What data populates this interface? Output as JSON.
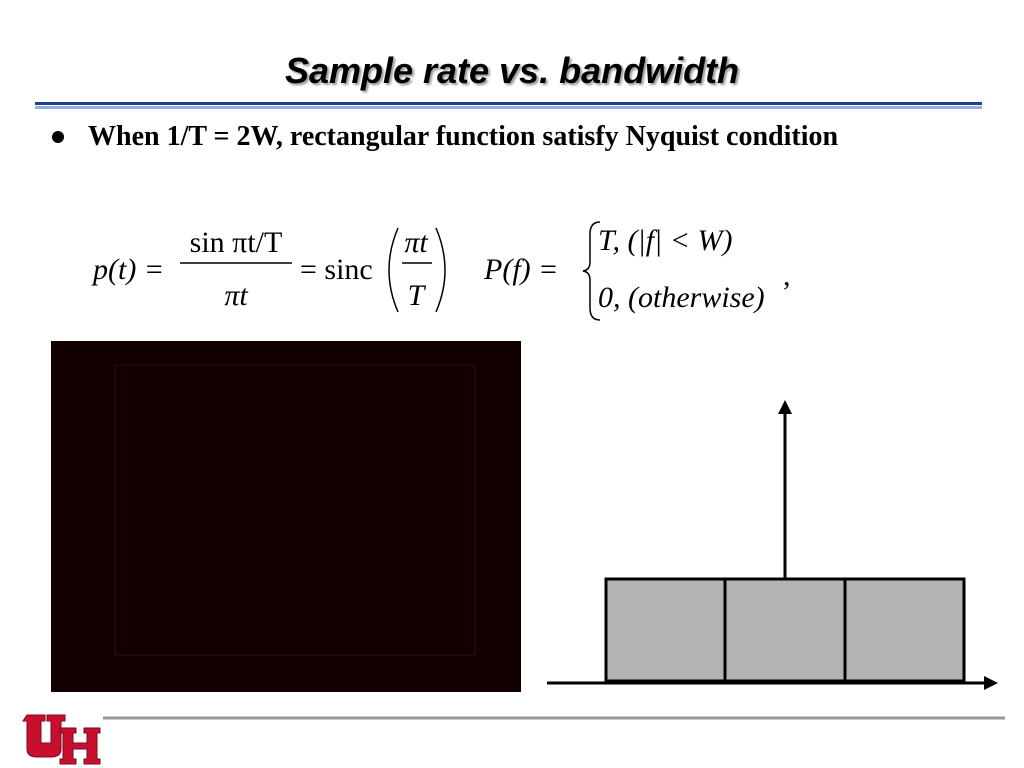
{
  "header": {
    "title": "Sample rate vs. bandwidth"
  },
  "bullets": [
    "When 1/T = 2W, rectangular function satisfy Nyquist condition"
  ],
  "equations": {
    "time": {
      "lhs": "p(t) =",
      "num": "sin πt/T",
      "den": "πt",
      "mid": "= sinc",
      "arg_num": "πt",
      "arg_den": "T"
    },
    "freq": {
      "lhs": "P(f) =",
      "case1": "T, (|f| < W)",
      "case2": "0, (otherwise)",
      "tail": ","
    }
  }
}
